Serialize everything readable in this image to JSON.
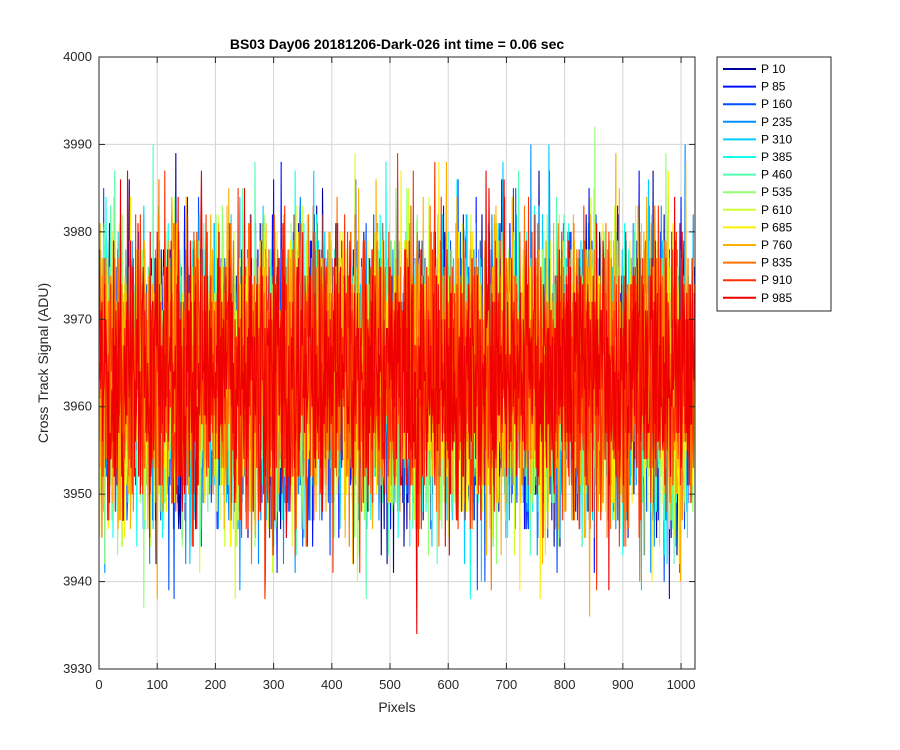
{
  "chart_data": {
    "type": "line",
    "title": "BS03 Day06 20181206-Dark-026 int time = 0.06 sec",
    "xlabel": "Pixels",
    "ylabel": "Cross Track Signal (ADU)",
    "xlim": [
      0,
      1024
    ],
    "ylim": [
      3930,
      4000
    ],
    "xticks": [
      0,
      100,
      200,
      300,
      400,
      500,
      600,
      700,
      800,
      900,
      1000
    ],
    "yticks": [
      3930,
      3940,
      3950,
      3960,
      3970,
      3980,
      3990,
      4000
    ],
    "grid": true,
    "legend_position": "outside-right-top",
    "n_points": 1024,
    "noise_model": {
      "mean": 3964,
      "std": 8,
      "min_observed": 3931,
      "max_observed": 3993
    },
    "series": [
      {
        "name": "P 10",
        "color": "#00009F"
      },
      {
        "name": "P 85",
        "color": "#0010FF"
      },
      {
        "name": "P 160",
        "color": "#0050FF"
      },
      {
        "name": "P 235",
        "color": "#0090FF"
      },
      {
        "name": "P 310",
        "color": "#00CFFF"
      },
      {
        "name": "P 385",
        "color": "#10FFEF"
      },
      {
        "name": "P 460",
        "color": "#50FFAF"
      },
      {
        "name": "P 535",
        "color": "#90FF70"
      },
      {
        "name": "P 610",
        "color": "#CFFF30"
      },
      {
        "name": "P 685",
        "color": "#FFEF00"
      },
      {
        "name": "P 760",
        "color": "#FFAF00"
      },
      {
        "name": "P 835",
        "color": "#FF7000"
      },
      {
        "name": "P 910",
        "color": "#FF3000"
      },
      {
        "name": "P 985",
        "color": "#EF0000"
      }
    ]
  }
}
